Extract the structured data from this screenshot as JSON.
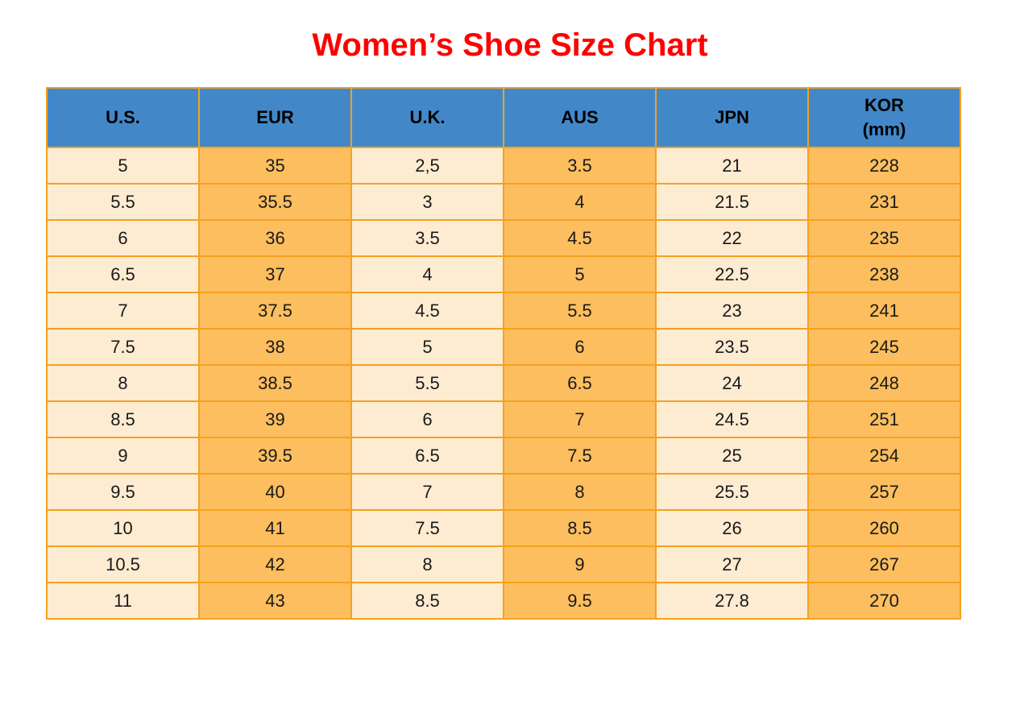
{
  "title": {
    "text": "Women’s Shoe Size Chart"
  },
  "colors": {
    "title_text": "#ff0000",
    "page_bg": "#ffffff",
    "header_bg": "#4288c8",
    "header_text": "#000000",
    "cell_text": "#1a1a1a",
    "column_light": "#fdecd2",
    "column_orange": "#fcbe5e",
    "border": "#f5a11f"
  },
  "chart_data": {
    "type": "table",
    "title": "Women’s Shoe Size Chart",
    "columns": [
      "U.S.",
      "EUR",
      "U.K.",
      "AUS",
      "JPN",
      "KOR\n(mm)"
    ],
    "column_keys": [
      "us",
      "eur",
      "uk",
      "aus",
      "jpn",
      "kor-mm"
    ],
    "column_styles": [
      "light",
      "orange",
      "light",
      "orange",
      "light",
      "orange"
    ],
    "rows": [
      [
        "5",
        "35",
        "2,5",
        "3.5",
        "21",
        "228"
      ],
      [
        "5.5",
        "35.5",
        "3",
        "4",
        "21.5",
        "231"
      ],
      [
        "6",
        "36",
        "3.5",
        "4.5",
        "22",
        "235"
      ],
      [
        "6.5",
        "37",
        "4",
        "5",
        "22.5",
        "238"
      ],
      [
        "7",
        "37.5",
        "4.5",
        "5.5",
        "23",
        "241"
      ],
      [
        "7.5",
        "38",
        "5",
        "6",
        "23.5",
        "245"
      ],
      [
        "8",
        "38.5",
        "5.5",
        "6.5",
        "24",
        "248"
      ],
      [
        "8.5",
        "39",
        "6",
        "7",
        "24.5",
        "251"
      ],
      [
        "9",
        "39.5",
        "6.5",
        "7.5",
        "25",
        "254"
      ],
      [
        "9.5",
        "40",
        "7",
        "8",
        "25.5",
        "257"
      ],
      [
        "10",
        "41",
        "7.5",
        "8.5",
        "26",
        "260"
      ],
      [
        "10.5",
        "42",
        "8",
        "9",
        "27",
        "267"
      ],
      [
        "11",
        "43",
        "8.5",
        "9.5",
        "27.8",
        "270"
      ]
    ]
  }
}
